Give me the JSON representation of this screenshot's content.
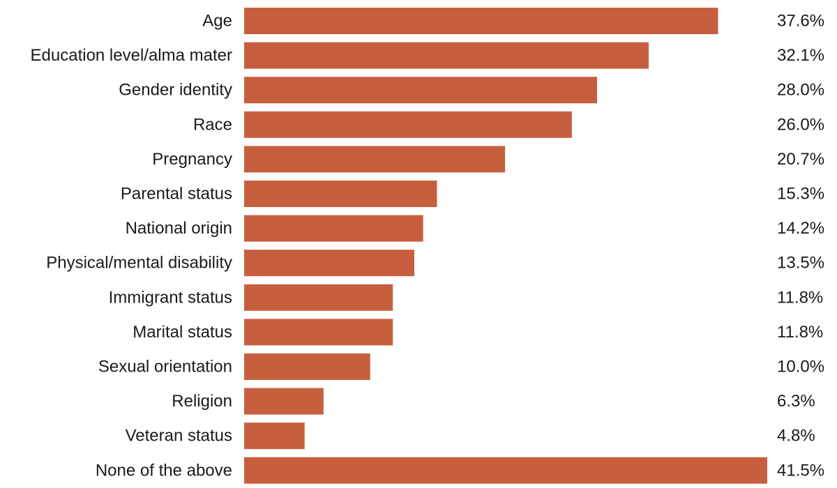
{
  "chart_data": {
    "type": "bar",
    "orientation": "horizontal",
    "title": "",
    "xlabel": "",
    "ylabel": "",
    "xlim": [
      0,
      41.5
    ],
    "grid": false,
    "legend": "none",
    "bar_color": "#c75f3f",
    "categories": [
      "Age",
      "Education level/alma mater",
      "Gender identity",
      "Race",
      "Pregnancy",
      "Parental status",
      "National origin",
      "Physical/mental disability",
      "Immigrant status",
      "Marital status",
      "Sexual orientation",
      "Religion",
      "Veteran status",
      "None of the above"
    ],
    "values": [
      37.6,
      32.1,
      28.0,
      26.0,
      20.7,
      15.3,
      14.2,
      13.5,
      11.8,
      11.8,
      10.0,
      6.3,
      4.8,
      41.5
    ],
    "value_labels": [
      "37.6%",
      "32.1%",
      "28.0%",
      "26.0%",
      "20.7%",
      "15.3%",
      "14.2%",
      "13.5%",
      "11.8%",
      "11.8%",
      "10.0%",
      "6.3%",
      "4.8%",
      "41.5%"
    ]
  }
}
